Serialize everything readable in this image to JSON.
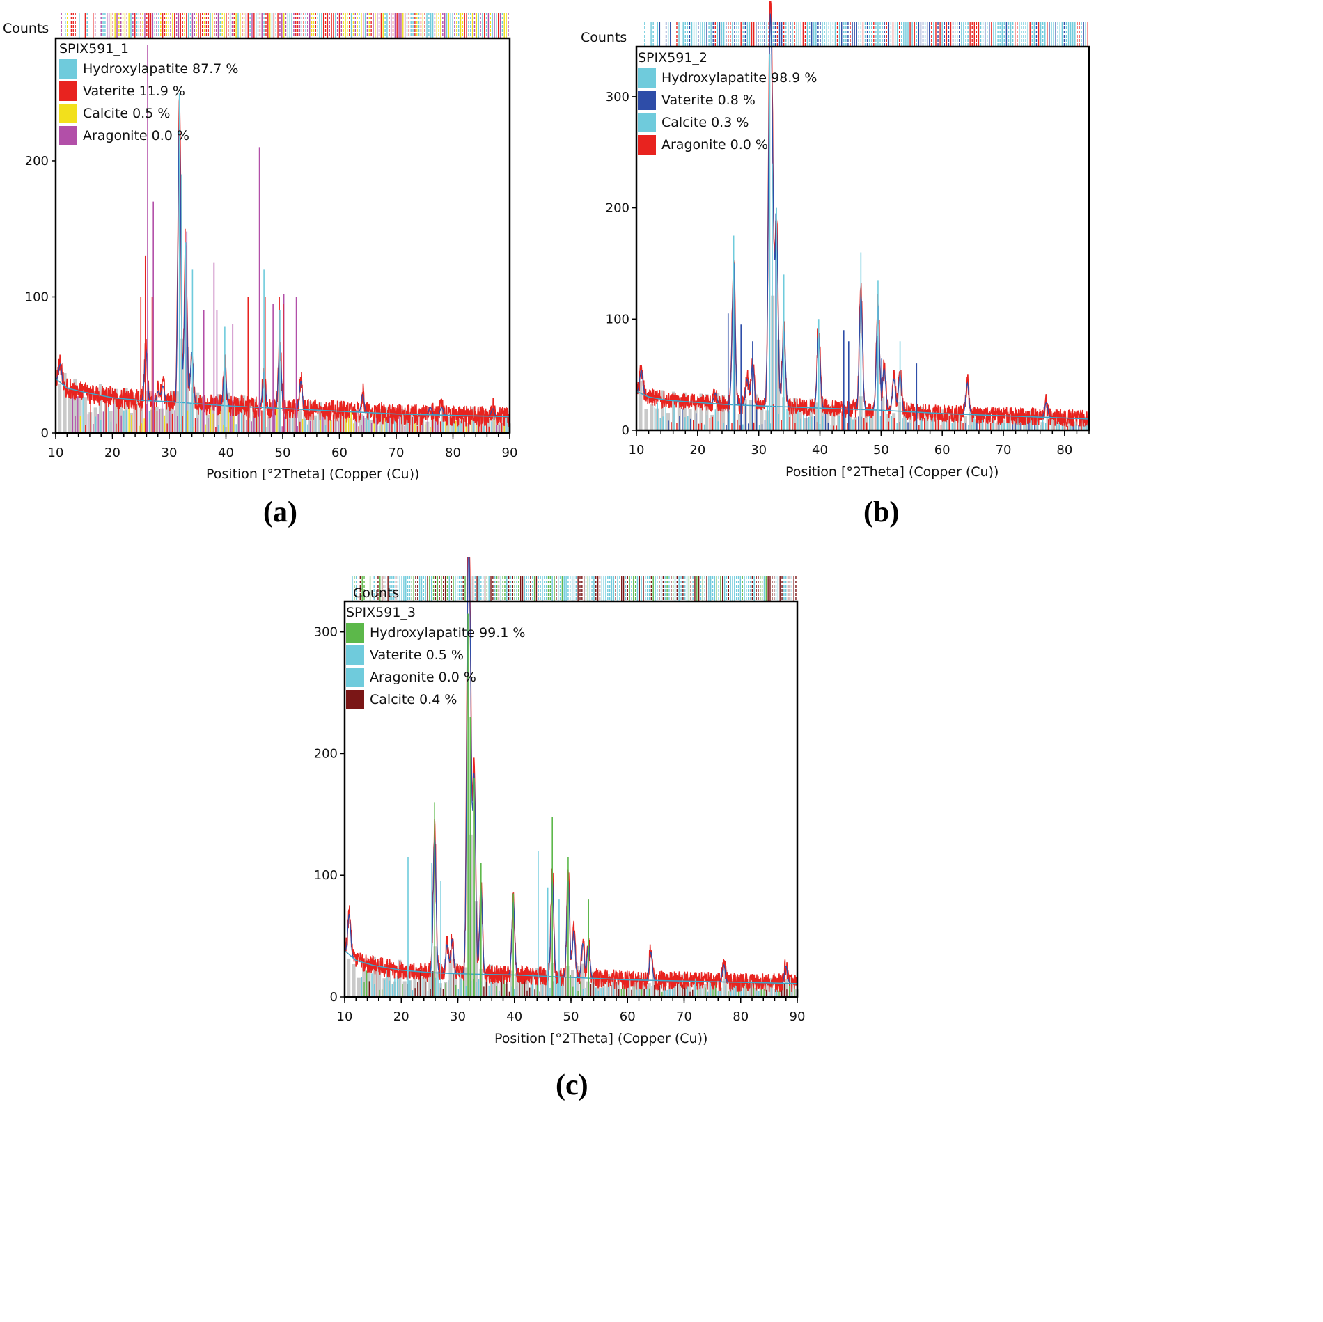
{
  "chart_data": [
    {
      "type": "line",
      "id": "a",
      "caption": "(a)",
      "sample": "SPIX591_1",
      "ylabel": "Counts",
      "xlabel": "Position [°2Theta] (Copper (Cu))",
      "xlim": [
        10,
        90
      ],
      "ylim": [
        0,
        290
      ],
      "xticks": [
        10,
        20,
        30,
        40,
        50,
        60,
        70,
        80,
        90
      ],
      "yticks": [
        0,
        100,
        200
      ],
      "pattern_color": "#e8231f",
      "legend": [
        {
          "label": "Hydroxylapatite 87.7 %",
          "color": "#6fcbdc"
        },
        {
          "label": "Vaterite 11.9 %",
          "color": "#e8231f"
        },
        {
          "label": "Calcite 0.5 %",
          "color": "#f2e01c"
        },
        {
          "label": "Aragonite 0.0 %",
          "color": "#b24fa8"
        }
      ],
      "background": [
        [
          10,
          40
        ],
        [
          12,
          33
        ],
        [
          15,
          30
        ],
        [
          20,
          26
        ],
        [
          25,
          24
        ],
        [
          30,
          23
        ],
        [
          40,
          20
        ],
        [
          50,
          18
        ],
        [
          60,
          16
        ],
        [
          70,
          14
        ],
        [
          80,
          13
        ],
        [
          90,
          12
        ]
      ],
      "peaks": [
        [
          10.8,
          14
        ],
        [
          25.9,
          40
        ],
        [
          28.1,
          8
        ],
        [
          28.9,
          12
        ],
        [
          31.8,
          220
        ],
        [
          32.9,
          110
        ],
        [
          34.0,
          40
        ],
        [
          39.8,
          30
        ],
        [
          46.7,
          28
        ],
        [
          49.5,
          50
        ],
        [
          53.2,
          22
        ],
        [
          64.1,
          14
        ],
        [
          76,
          6
        ],
        [
          78,
          6
        ],
        [
          87,
          6
        ]
      ],
      "stick_series": [
        {
          "color": "#b24fa8",
          "sticks": [
            [
              26.2,
              285
            ],
            [
              27.2,
              170
            ],
            [
              33.1,
              148
            ],
            [
              36.1,
              90
            ],
            [
              37.9,
              125
            ],
            [
              38.4,
              90
            ],
            [
              41.2,
              80
            ],
            [
              45.9,
              210
            ],
            [
              48.3,
              95
            ],
            [
              50.2,
              102
            ],
            [
              52.4,
              100
            ]
          ]
        },
        {
          "color": "#e8231f",
          "sticks": [
            [
              25.0,
              100
            ],
            [
              25.8,
              130
            ],
            [
              27.0,
              100
            ],
            [
              32.8,
              150
            ],
            [
              43.9,
              100
            ],
            [
              46.9,
              100
            ],
            [
              49.4,
              100
            ],
            [
              50.1,
              95
            ]
          ]
        },
        {
          "color": "#6fcbdc",
          "sticks": [
            [
              31.8,
              250
            ],
            [
              32.2,
              190
            ],
            [
              32.9,
              140
            ],
            [
              34.1,
              120
            ],
            [
              39.8,
              78
            ],
            [
              46.7,
              120
            ],
            [
              49.5,
              90
            ]
          ]
        }
      ]
    },
    {
      "type": "line",
      "id": "b",
      "caption": "(b)",
      "sample": "SPIX591_2",
      "ylabel": "Counts",
      "xlabel": "Position [°2Theta] (Copper (Cu))",
      "xlim": [
        10,
        84
      ],
      "ylim": [
        0,
        345
      ],
      "xticks": [
        10,
        20,
        30,
        40,
        50,
        60,
        70,
        80
      ],
      "yticks": [
        0,
        100,
        200,
        300
      ],
      "pattern_color": "#e8231f",
      "legend": [
        {
          "label": "Hydroxylapatite 98.9 %",
          "color": "#6fcbdc"
        },
        {
          "label": "Vaterite 0.8 %",
          "color": "#2e4da8"
        },
        {
          "label": "Calcite 0.3 %",
          "color": "#6fcbdc"
        },
        {
          "label": "Aragonite 0.0 %",
          "color": "#e8231f"
        }
      ],
      "background": [
        [
          10,
          35
        ],
        [
          12,
          30
        ],
        [
          15,
          27
        ],
        [
          20,
          25
        ],
        [
          25,
          23
        ],
        [
          30,
          22
        ],
        [
          40,
          20
        ],
        [
          50,
          18
        ],
        [
          60,
          15
        ],
        [
          70,
          13
        ],
        [
          80,
          11
        ],
        [
          84,
          10
        ]
      ],
      "peaks": [
        [
          10.8,
          22
        ],
        [
          22.9,
          10
        ],
        [
          25.9,
          130
        ],
        [
          28.1,
          25
        ],
        [
          29.0,
          40
        ],
        [
          31.8,
          300
        ],
        [
          32.2,
          200
        ],
        [
          32.9,
          170
        ],
        [
          34.1,
          75
        ],
        [
          39.8,
          70
        ],
        [
          46.7,
          110
        ],
        [
          49.5,
          100
        ],
        [
          50.5,
          40
        ],
        [
          52.1,
          30
        ],
        [
          53.1,
          35
        ],
        [
          64.1,
          30
        ],
        [
          77,
          14
        ]
      ],
      "stick_series": [
        {
          "color": "#2e4da8",
          "sticks": [
            [
              25.0,
              105
            ],
            [
              26.0,
              150
            ],
            [
              27.1,
              95
            ],
            [
              29.0,
              80
            ],
            [
              32.8,
              195
            ],
            [
              43.9,
              90
            ],
            [
              44.7,
              80
            ],
            [
              49.4,
              85
            ],
            [
              50.1,
              65
            ],
            [
              55.8,
              60
            ]
          ]
        },
        {
          "color": "#6fcbdc",
          "sticks": [
            [
              25.9,
              175
            ],
            [
              31.8,
              338
            ],
            [
              32.2,
              240
            ],
            [
              32.9,
              200
            ],
            [
              34.1,
              140
            ],
            [
              39.8,
              100
            ],
            [
              46.7,
              160
            ],
            [
              49.5,
              135
            ],
            [
              53.1,
              80
            ]
          ]
        }
      ]
    },
    {
      "type": "line",
      "id": "c",
      "caption": "(c)",
      "sample": "SPIX591_3",
      "ylabel": "Counts",
      "xlabel": "Position [°2Theta] (Copper (Cu))",
      "xlim": [
        10,
        90
      ],
      "ylim": [
        0,
        325
      ],
      "xticks": [
        10,
        20,
        30,
        40,
        50,
        60,
        70,
        80,
        90
      ],
      "yticks": [
        0,
        100,
        200,
        300
      ],
      "pattern_color": "#e8231f",
      "legend": [
        {
          "label": "Hydroxylapatite 99.1 %",
          "color": "#5cb84a"
        },
        {
          "label": "Vaterite 0.5 %",
          "color": "#6fcbdc"
        },
        {
          "label": "Aragonite 0.0 %",
          "color": "#6fcbdc"
        },
        {
          "label": "Calcite 0.4 %",
          "color": "#7a1616"
        }
      ],
      "background": [
        [
          10,
          38
        ],
        [
          12,
          30
        ],
        [
          15,
          26
        ],
        [
          20,
          22
        ],
        [
          25,
          20
        ],
        [
          30,
          19
        ],
        [
          40,
          18
        ],
        [
          50,
          16
        ],
        [
          60,
          14
        ],
        [
          70,
          13
        ],
        [
          80,
          12
        ],
        [
          90,
          11
        ]
      ],
      "peaks": [
        [
          10.8,
          35
        ],
        [
          25.9,
          120
        ],
        [
          28.1,
          25
        ],
        [
          29.0,
          30
        ],
        [
          31.8,
          300
        ],
        [
          32.2,
          210
        ],
        [
          32.9,
          170
        ],
        [
          34.1,
          75
        ],
        [
          39.8,
          65
        ],
        [
          46.7,
          85
        ],
        [
          49.5,
          85
        ],
        [
          50.5,
          40
        ],
        [
          52.1,
          30
        ],
        [
          53.1,
          30
        ],
        [
          64.1,
          25
        ],
        [
          77,
          15
        ],
        [
          88,
          15
        ]
      ],
      "stick_series": [
        {
          "color": "#5cb84a",
          "sticks": [
            [
              25.9,
              160
            ],
            [
              31.8,
              315
            ],
            [
              32.2,
              230
            ],
            [
              32.9,
              180
            ],
            [
              34.1,
              110
            ],
            [
              39.8,
              85
            ],
            [
              46.7,
              148
            ],
            [
              49.5,
              115
            ],
            [
              53.1,
              80
            ]
          ]
        },
        {
          "color": "#6fcbdc",
          "sticks": [
            [
              21.2,
              115
            ],
            [
              25.4,
              110
            ],
            [
              27.0,
              95
            ],
            [
              44.2,
              120
            ],
            [
              45.9,
              90
            ],
            [
              47.9,
              80
            ]
          ]
        }
      ]
    }
  ]
}
